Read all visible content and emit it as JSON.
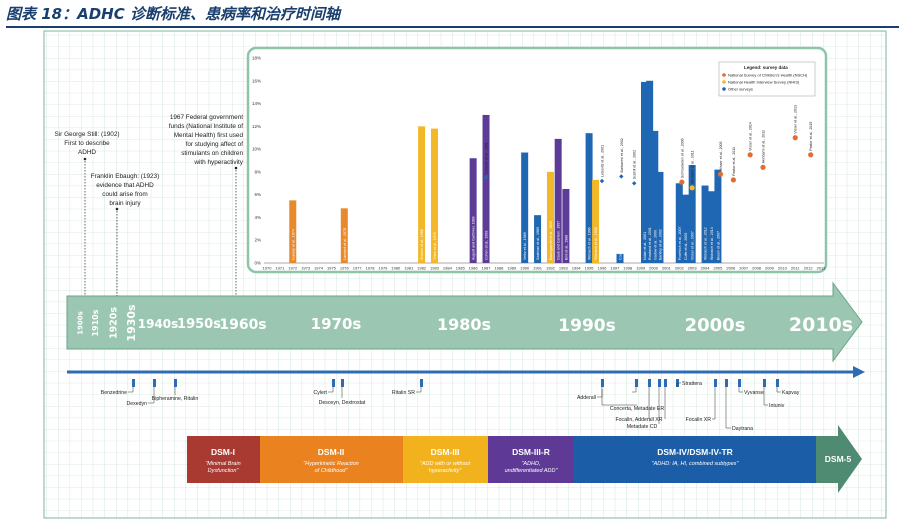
{
  "page": {
    "title": "图表 18：ADHC 诊断标准、患病率和治疗时间轴"
  },
  "colors": {
    "orange": "#e8892c",
    "yellow": "#f2b82a",
    "purple": "#5c3c97",
    "blue": "#1f67b2",
    "dsm1": "#a83a32",
    "dsm2": "#e9821f",
    "dsm3": "#f2b21e",
    "dsm3r": "#5e3a96",
    "dsm4": "#1c5da8",
    "dsm5": "#4f8a72",
    "timeline_arrow": "#9bc6b1",
    "med_line": "#2d6bb5"
  },
  "chart_data": {
    "type": "bar",
    "title": "",
    "xlabel": "",
    "ylabel": "",
    "ylim": [
      0,
      18
    ],
    "x_years": [
      1970,
      1971,
      1972,
      1973,
      1974,
      1975,
      1976,
      1977,
      1978,
      1979,
      1980,
      1981,
      1982,
      1983,
      1984,
      1985,
      1986,
      1987,
      1988,
      1989,
      1990,
      1991,
      1992,
      1993,
      1994,
      1995,
      1996,
      1997,
      1998,
      1999,
      2000,
      2001,
      2002,
      2003,
      2004,
      2005,
      2006,
      2007,
      2008,
      2009,
      2010,
      2011,
      2012,
      2013
    ],
    "y_ticks": [
      "0%",
      "2%",
      "4%",
      "6%",
      "8%",
      "10%",
      "12%",
      "14%",
      "16%",
      "18%"
    ],
    "legend": {
      "title": "Legend: survey data",
      "position": "top-right",
      "items": [
        {
          "label": "National Survey of Children's Health (NSCH)",
          "color": "#e36c2e"
        },
        {
          "label": "National Health Interview Survey (NHIS)",
          "color": "#f2b82a"
        },
        {
          "label": "Other surveys",
          "color": "#1f67b2"
        }
      ]
    },
    "bars": [
      {
        "year": 1972,
        "value": 5.5,
        "color": "orange",
        "label": "Huessy et al., 1974"
      },
      {
        "year": 1976,
        "value": 4.8,
        "color": "orange",
        "label": "Lambert et al., 1978"
      },
      {
        "year": 1982,
        "value": 12.0,
        "color": "yellow",
        "label": "Shekim et al., 1985"
      },
      {
        "year": 1983,
        "value": 11.8,
        "color": "yellow",
        "label": "Trites et al., 1979"
      },
      {
        "year": 1986,
        "value": 9.2,
        "color": "purple",
        "label": "August and Garfinkel, 1989"
      },
      {
        "year": 1987,
        "value": 13.0,
        "color": "purple",
        "label": "Cohen et al., 1993"
      },
      {
        "year": 1990,
        "value": 9.7,
        "color": "blue",
        "label": "Velez et al., 1989"
      },
      {
        "year": 1991,
        "value": 4.2,
        "color": "blue",
        "label": "Szatmari et al., 1989"
      },
      {
        "year": 1992,
        "value": 8.0,
        "color": "yellow",
        "label": "Baumgaertel et al., 1995"
      },
      {
        "year": 1992.6,
        "value": 10.9,
        "color": "purple",
        "label": "Gaub and Carlson, 1997"
      },
      {
        "year": 1993.2,
        "value": 6.5,
        "color": "purple",
        "label": "Bird et al., 1988"
      },
      {
        "year": 1995,
        "value": 11.4,
        "color": "blue",
        "label": "Wolraich et al., 1996"
      },
      {
        "year": 1995.5,
        "value": 7.3,
        "color": "yellow",
        "label": "Wolraich et al., 1998"
      },
      {
        "year": 1997.4,
        "value": 0.8,
        "color": "blue",
        "label": "Costello et al., 2003"
      },
      {
        "year": 1999.3,
        "value": 15.9,
        "color": "blue",
        "label": "Nolan et al., 2001"
      },
      {
        "year": 1999.7,
        "value": 16.0,
        "color": "blue",
        "label": "Rowland et al., 2001"
      },
      {
        "year": 2000.1,
        "value": 11.6,
        "color": "blue",
        "label": "Gadow et al., 2000"
      },
      {
        "year": 2000.5,
        "value": 8.0,
        "color": "blue",
        "label": "Barkley et al., 2002"
      },
      {
        "year": 2002,
        "value": 7.0,
        "color": "blue",
        "label": "Froehlich et al., 2007"
      },
      {
        "year": 2002.5,
        "value": 6.0,
        "color": "blue",
        "label": "Cuffe et al., 2005"
      },
      {
        "year": 2003,
        "value": 8.6,
        "color": "blue",
        "label": "Visser et al., 2007"
      },
      {
        "year": 2004,
        "value": 6.8,
        "color": "blue",
        "label": "Wolraich et al., 2012"
      },
      {
        "year": 2004.5,
        "value": 6.3,
        "color": "blue",
        "label": "Wolraich et al., 2014"
      },
      {
        "year": 2005,
        "value": 8.2,
        "color": "blue",
        "label": "Bloom et al., 2007"
      }
    ],
    "points": [
      {
        "year": 1987,
        "value": 7.5,
        "color": "#1f67b2",
        "label": "Leibson et al., 2001"
      },
      {
        "year": 1996,
        "value": 7.2,
        "color": "#1f67b2",
        "label": "Lebovitz et al., 2001"
      },
      {
        "year": 1997.5,
        "value": 7.6,
        "color": "#1f67b2",
        "label": "Barbaresi et al., 2002"
      },
      {
        "year": 1998.5,
        "value": 7.0,
        "color": "#1f67b2",
        "label": "Scahill et al., 2002"
      },
      {
        "year": 2002.2,
        "value": 7.1,
        "color": "#e36c2e",
        "label": "Schnoebelen et al., 2006"
      },
      {
        "year": 2003,
        "value": 6.6,
        "color": "#f2b82a",
        "label": "Akinbami et al., 2011"
      },
      {
        "year": 2005.2,
        "value": 7.8,
        "color": "#e36c2e",
        "label": "Visser et al., 2005"
      },
      {
        "year": 2006.2,
        "value": 7.3,
        "color": "#e36c2e",
        "label": "Pastor et al., 2011"
      },
      {
        "year": 2007.5,
        "value": 9.5,
        "color": "#e36c2e",
        "label": "Visser et al., 2014"
      },
      {
        "year": 2008.5,
        "value": 8.4,
        "color": "#e36c2e",
        "label": "Akinbami et al., 2011"
      },
      {
        "year": 2011,
        "value": 11.0,
        "color": "#e36c2e",
        "label": "Visser et al., 2013"
      },
      {
        "year": 2012.2,
        "value": 9.5,
        "color": "#e36c2e",
        "label": "Pastor et al., 2015"
      }
    ]
  },
  "annotations": [
    {
      "id": "still",
      "lines": [
        "Sir George Still: (1902)",
        "First to describe",
        "ADHD"
      ]
    },
    {
      "id": "ebaugh",
      "lines": [
        "Franklin Ebaugh: (1923)",
        "evidence that ADHD",
        "could arise from",
        "brain injury"
      ]
    },
    {
      "id": "nimh",
      "lines": [
        "1967 Federal government",
        "funds (National Institute of",
        "Mental Health) first used",
        "for studying affect of",
        "stimulants on children",
        "with hyperactivity"
      ]
    }
  ],
  "decades": [
    "1900s",
    "1910s",
    "1920s",
    "1930s",
    "1940s",
    "1950s",
    "1960s",
    "1970s",
    "1980s",
    "1990s",
    "2000s",
    "2010s"
  ],
  "medications": [
    {
      "label": "Benzedrine"
    },
    {
      "label": "Dexedyn"
    },
    {
      "label": "Bipheramine, Ritalin"
    },
    {
      "label": "Cylert"
    },
    {
      "label": "Desoxyn, Dextrostat"
    },
    {
      "label": "Ritalin SR"
    },
    {
      "label": "Adderall"
    },
    {
      "label": "Concerta, Metadate ER"
    },
    {
      "label": "Metadate CD"
    },
    {
      "label": "Focalin, Adderall XR"
    },
    {
      "label": "Focalin XR"
    },
    {
      "label": "Strattera"
    },
    {
      "label": "Daytrana"
    },
    {
      "label": "Vyvanse"
    },
    {
      "label": "Intuniv"
    },
    {
      "label": "Kapvay"
    }
  ],
  "dsm": [
    {
      "name": "DSM-I",
      "sub": [
        "\"Minimal Brain",
        "Dysfunction\""
      ]
    },
    {
      "name": "DSM-II",
      "sub": [
        "\"Hyperkinetic Reaction",
        "of Childhood\""
      ]
    },
    {
      "name": "DSM-III",
      "sub": [
        "\"ADD with or without",
        "hyperactivity\""
      ]
    },
    {
      "name": "DSM-III-R",
      "sub": [
        "\"ADHD,",
        "undifferentiated ADD\""
      ]
    },
    {
      "name": "DSM-IV/DSM-IV-TR",
      "sub": [
        "\"ADHD: IA, HI, combined subtypes\""
      ]
    },
    {
      "name": "DSM-5",
      "sub": []
    }
  ]
}
